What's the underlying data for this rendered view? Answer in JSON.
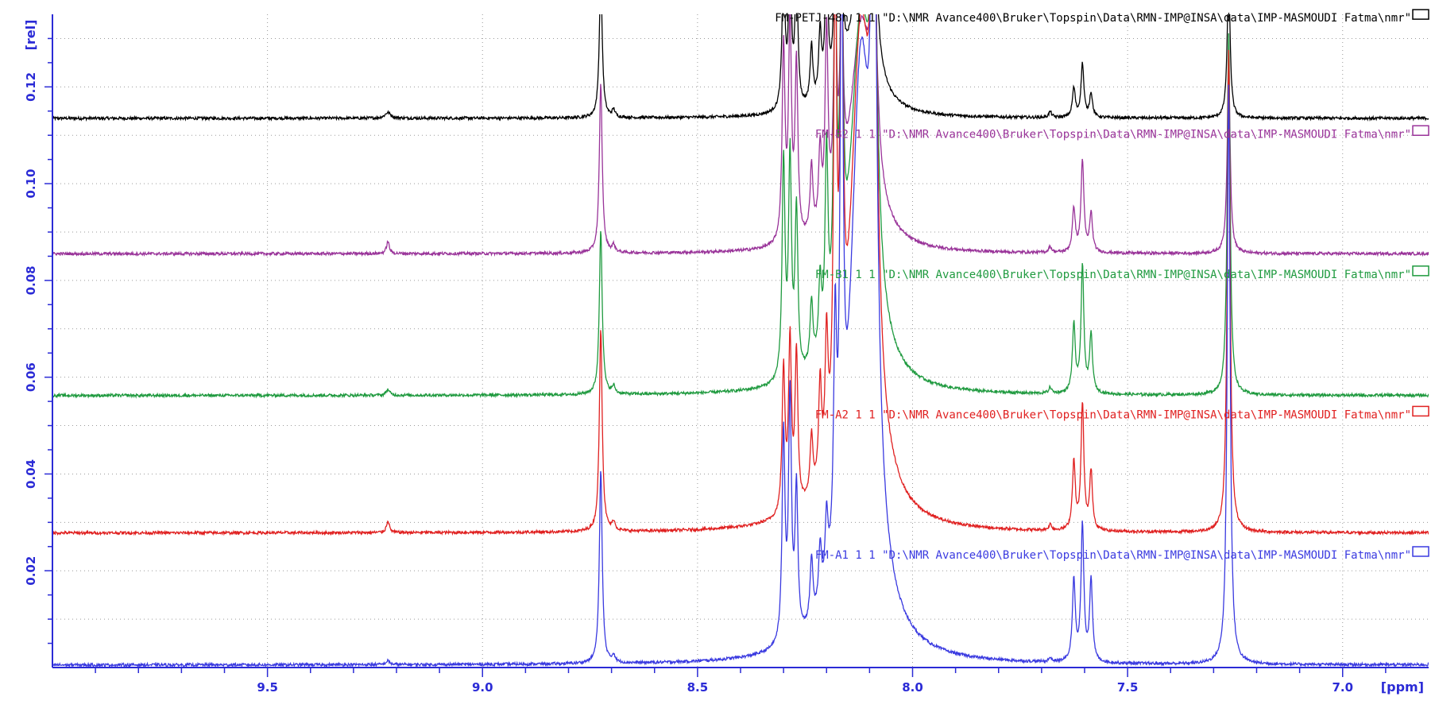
{
  "chart_data": {
    "type": "line",
    "title": "",
    "xlabel": "[ppm]",
    "ylabel": "[rel]",
    "xlim": [
      10.0,
      6.8
    ],
    "ylim": [
      0.0,
      0.135
    ],
    "x_reversed": true,
    "grid": true,
    "x_ticks": [
      {
        "value": 9.5,
        "label": "9.5"
      },
      {
        "value": 9.0,
        "label": "9.0"
      },
      {
        "value": 8.5,
        "label": "8.5"
      },
      {
        "value": 8.0,
        "label": "8.0"
      },
      {
        "value": 7.5,
        "label": "7.5"
      },
      {
        "value": 7.0,
        "label": "7.0"
      }
    ],
    "y_ticks": [
      {
        "value": 0.02,
        "label": "0.02"
      },
      {
        "value": 0.04,
        "label": "0.04"
      },
      {
        "value": 0.06,
        "label": "0.06"
      },
      {
        "value": 0.08,
        "label": "0.08"
      },
      {
        "value": 0.1,
        "label": "0.10"
      },
      {
        "value": 0.12,
        "label": "0.12"
      }
    ],
    "series": [
      {
        "name": "FM-PETJ-48h",
        "label": "FM-PETJ-48h   1  1   \"D:\\NMR Avance400\\Bruker\\Topspin\\Data\\RMN-IMP@INSA\\data\\IMP-MASMOUDI Fatma\\nmr\"",
        "color": "#000000",
        "baseline": 0.1135,
        "label_y": 0.1335,
        "peaks": [
          {
            "x": 9.22,
            "h": 0.0012,
            "w": 0.008
          },
          {
            "x": 8.725,
            "h": 0.03,
            "w": 0.004
          },
          {
            "x": 8.695,
            "h": 0.0015,
            "w": 0.004
          },
          {
            "x": 8.3,
            "h": 0.03,
            "w": 0.004
          },
          {
            "x": 8.285,
            "h": 0.03,
            "w": 0.004
          },
          {
            "x": 8.27,
            "h": 0.028,
            "w": 0.004
          },
          {
            "x": 8.235,
            "h": 0.012,
            "w": 0.004
          },
          {
            "x": 8.215,
            "h": 0.014,
            "w": 0.004
          },
          {
            "x": 8.2,
            "h": 0.03,
            "w": 0.004
          },
          {
            "x": 8.18,
            "h": 0.03,
            "w": 0.004
          },
          {
            "x": 8.165,
            "h": 0.03,
            "w": 0.004
          },
          {
            "x": 8.09,
            "h": 0.03,
            "w": 0.008
          },
          {
            "x": 8.12,
            "h": 0.03,
            "w": 0.03
          },
          {
            "x": 7.68,
            "h": 0.0012,
            "w": 0.004
          },
          {
            "x": 7.625,
            "h": 0.006,
            "w": 0.004
          },
          {
            "x": 7.605,
            "h": 0.011,
            "w": 0.004
          },
          {
            "x": 7.585,
            "h": 0.005,
            "w": 0.004
          },
          {
            "x": 7.265,
            "h": 0.03,
            "w": 0.004
          }
        ]
      },
      {
        "name": "FM-B2",
        "label": "FM-B2   1  1   \"D:\\NMR Avance400\\Bruker\\Topspin\\Data\\RMN-IMP@INSA\\data\\IMP-MASMOUDI Fatma\\nmr\"",
        "color": "#993399",
        "baseline": 0.0855,
        "label_y": 0.1095,
        "peaks": [
          {
            "x": 9.22,
            "h": 0.0025,
            "w": 0.004
          },
          {
            "x": 8.725,
            "h": 0.035,
            "w": 0.004
          },
          {
            "x": 8.695,
            "h": 0.0015,
            "w": 0.004
          },
          {
            "x": 8.3,
            "h": 0.04,
            "w": 0.004
          },
          {
            "x": 8.285,
            "h": 0.045,
            "w": 0.004
          },
          {
            "x": 8.27,
            "h": 0.036,
            "w": 0.004
          },
          {
            "x": 8.235,
            "h": 0.014,
            "w": 0.004
          },
          {
            "x": 8.215,
            "h": 0.016,
            "w": 0.004
          },
          {
            "x": 8.2,
            "h": 0.04,
            "w": 0.004
          },
          {
            "x": 8.18,
            "h": 0.045,
            "w": 0.004
          },
          {
            "x": 8.165,
            "h": 0.045,
            "w": 0.004
          },
          {
            "x": 8.09,
            "h": 0.045,
            "w": 0.008
          },
          {
            "x": 8.12,
            "h": 0.045,
            "w": 0.03
          },
          {
            "x": 7.68,
            "h": 0.0012,
            "w": 0.004
          },
          {
            "x": 7.625,
            "h": 0.009,
            "w": 0.004
          },
          {
            "x": 7.605,
            "h": 0.019,
            "w": 0.004
          },
          {
            "x": 7.585,
            "h": 0.008,
            "w": 0.004
          },
          {
            "x": 7.265,
            "h": 0.04,
            "w": 0.004
          }
        ]
      },
      {
        "name": "FM-B1",
        "label": "FM-B1   1  1   \"D:\\NMR Avance400\\Bruker\\Topspin\\Data\\RMN-IMP@INSA\\data\\IMP-MASMOUDI Fatma\\nmr\"",
        "color": "#1f9a3f",
        "baseline": 0.0562,
        "label_y": 0.0805,
        "peaks": [
          {
            "x": 9.22,
            "h": 0.0012,
            "w": 0.005
          },
          {
            "x": 8.725,
            "h": 0.034,
            "w": 0.004
          },
          {
            "x": 8.695,
            "h": 0.0015,
            "w": 0.004
          },
          {
            "x": 8.3,
            "h": 0.045,
            "w": 0.004
          },
          {
            "x": 8.285,
            "h": 0.045,
            "w": 0.004
          },
          {
            "x": 8.27,
            "h": 0.034,
            "w": 0.004
          },
          {
            "x": 8.235,
            "h": 0.013,
            "w": 0.004
          },
          {
            "x": 8.215,
            "h": 0.015,
            "w": 0.004
          },
          {
            "x": 8.2,
            "h": 0.04,
            "w": 0.004
          },
          {
            "x": 8.18,
            "h": 0.075,
            "w": 0.004
          },
          {
            "x": 8.165,
            "h": 0.075,
            "w": 0.004
          },
          {
            "x": 8.09,
            "h": 0.075,
            "w": 0.008
          },
          {
            "x": 8.12,
            "h": 0.075,
            "w": 0.03
          },
          {
            "x": 7.68,
            "h": 0.0012,
            "w": 0.004
          },
          {
            "x": 7.625,
            "h": 0.014,
            "w": 0.004
          },
          {
            "x": 7.605,
            "h": 0.026,
            "w": 0.004
          },
          {
            "x": 7.585,
            "h": 0.012,
            "w": 0.004
          },
          {
            "x": 7.265,
            "h": 0.075,
            "w": 0.004
          }
        ]
      },
      {
        "name": "FM-A2",
        "label": "FM-A2   1  1   \"D:\\NMR Avance400\\Bruker\\Topspin\\Data\\RMN-IMP@INSA\\data\\IMP-MASMOUDI Fatma\\nmr\"",
        "color": "#e02020",
        "baseline": 0.0278,
        "label_y": 0.0515,
        "peaks": [
          {
            "x": 9.22,
            "h": 0.0025,
            "w": 0.004
          },
          {
            "x": 8.725,
            "h": 0.042,
            "w": 0.004
          },
          {
            "x": 8.695,
            "h": 0.0018,
            "w": 0.004
          },
          {
            "x": 8.3,
            "h": 0.03,
            "w": 0.004
          },
          {
            "x": 8.285,
            "h": 0.035,
            "w": 0.004
          },
          {
            "x": 8.27,
            "h": 0.032,
            "w": 0.004
          },
          {
            "x": 8.235,
            "h": 0.012,
            "w": 0.004
          },
          {
            "x": 8.215,
            "h": 0.02,
            "w": 0.004
          },
          {
            "x": 8.2,
            "h": 0.026,
            "w": 0.004
          },
          {
            "x": 8.18,
            "h": 0.1,
            "w": 0.004
          },
          {
            "x": 8.165,
            "h": 0.1,
            "w": 0.004
          },
          {
            "x": 8.09,
            "h": 0.1,
            "w": 0.008
          },
          {
            "x": 8.12,
            "h": 0.1,
            "w": 0.03
          },
          {
            "x": 7.68,
            "h": 0.0012,
            "w": 0.004
          },
          {
            "x": 7.625,
            "h": 0.014,
            "w": 0.004
          },
          {
            "x": 7.605,
            "h": 0.026,
            "w": 0.004
          },
          {
            "x": 7.585,
            "h": 0.012,
            "w": 0.004
          },
          {
            "x": 7.265,
            "h": 0.1,
            "w": 0.004
          }
        ]
      },
      {
        "name": "FM-A1",
        "label": "FM-A1   1  1   \"D:\\NMR Avance400\\Bruker\\Topspin\\Data\\RMN-IMP@INSA\\data\\IMP-MASMOUDI Fatma\\nmr\"",
        "color": "#3a3ae0",
        "baseline": 0.0005,
        "label_y": 0.0225,
        "peaks": [
          {
            "x": 9.22,
            "h": 0.0008,
            "w": 0.005
          },
          {
            "x": 8.725,
            "h": 0.04,
            "w": 0.004
          },
          {
            "x": 8.695,
            "h": 0.0015,
            "w": 0.004
          },
          {
            "x": 8.3,
            "h": 0.043,
            "w": 0.004
          },
          {
            "x": 8.285,
            "h": 0.05,
            "w": 0.004
          },
          {
            "x": 8.27,
            "h": 0.03,
            "w": 0.004
          },
          {
            "x": 8.235,
            "h": 0.013,
            "w": 0.004
          },
          {
            "x": 8.215,
            "h": 0.012,
            "w": 0.004
          },
          {
            "x": 8.2,
            "h": 0.014,
            "w": 0.004
          },
          {
            "x": 8.18,
            "h": 0.045,
            "w": 0.004
          },
          {
            "x": 8.165,
            "h": 0.12,
            "w": 0.004
          },
          {
            "x": 8.09,
            "h": 0.12,
            "w": 0.008
          },
          {
            "x": 8.12,
            "h": 0.12,
            "w": 0.03
          },
          {
            "x": 7.68,
            "h": 0.0008,
            "w": 0.004
          },
          {
            "x": 7.625,
            "h": 0.017,
            "w": 0.004
          },
          {
            "x": 7.605,
            "h": 0.028,
            "w": 0.004
          },
          {
            "x": 7.585,
            "h": 0.017,
            "w": 0.004
          },
          {
            "x": 7.265,
            "h": 0.12,
            "w": 0.004
          }
        ]
      }
    ]
  }
}
